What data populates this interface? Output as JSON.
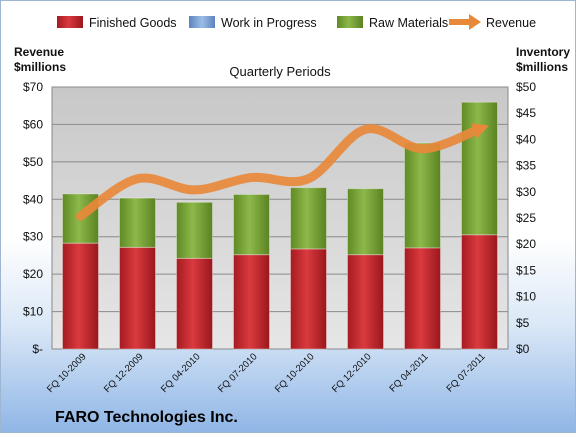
{
  "chart_data": {
    "type": "bar",
    "title": "Quarterly Periods",
    "company": "FARO Technologies Inc.",
    "left_axis_label_line1": "Revenue",
    "left_axis_label_line2": "$millions",
    "right_axis_label_line1": "Inventory",
    "right_axis_label_line2": "$millions",
    "left_ticks": [
      "$-",
      "$10",
      "$20",
      "$30",
      "$40",
      "$50",
      "$60",
      "$70"
    ],
    "right_ticks": [
      "$0",
      "$5",
      "$10",
      "$15",
      "$20",
      "$25",
      "$30",
      "$35",
      "$40",
      "$45",
      "$50"
    ],
    "ylim_left": [
      0,
      70
    ],
    "ylim_right": [
      0,
      50
    ],
    "categories": [
      "FQ 10-2009",
      "FQ 12-2009",
      "FQ 04-2010",
      "FQ 07-2010",
      "FQ 10-2010",
      "FQ 12-2010",
      "FQ 04-2011",
      "FQ 07-2011"
    ],
    "legend_position": "top",
    "series": [
      {
        "name": "Finished Goods",
        "kind": "stacked-bar",
        "axis": "right",
        "color": "#c8272d",
        "values": [
          20.2,
          19.4,
          17.3,
          18.0,
          19.1,
          18.0,
          19.3,
          21.8
        ]
      },
      {
        "name": "Work in Progress",
        "kind": "stacked-bar",
        "axis": "right",
        "color": "#7fa6d6",
        "values": [
          0,
          0,
          0,
          0,
          0,
          0,
          0,
          0
        ]
      },
      {
        "name": "Raw Materials",
        "kind": "stacked-bar",
        "axis": "right",
        "color": "#7fa43a",
        "values": [
          9.4,
          9.4,
          10.7,
          11.5,
          11.7,
          12.6,
          20.0,
          25.3
        ]
      },
      {
        "name": "Revenue",
        "kind": "line",
        "axis": "left",
        "color": "#e8893a",
        "values": [
          35.5,
          45.5,
          42.5,
          45.8,
          45.5,
          58.7,
          53.5,
          58.8
        ]
      }
    ]
  }
}
